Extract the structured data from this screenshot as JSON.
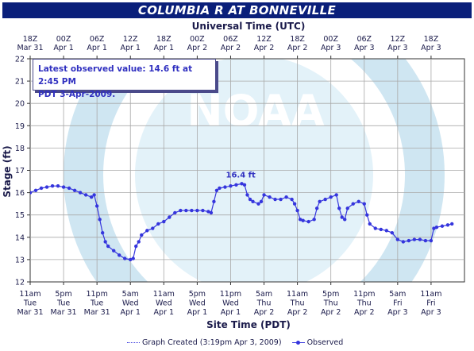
{
  "title": "COLUMBIA R  AT BONNEVILLE",
  "top_axis_title": "Universal Time (UTC)",
  "bottom_axis_title": "Site Time (PDT)",
  "annotation": {
    "line1": "Latest observed value: 14.6 ft at 2:45 PM",
    "line2": "PDT 3-Apr-2009."
  },
  "peak_label": "16.4 ft",
  "watermark": "NOAA",
  "legend": {
    "graph_created": "Graph Created (3:19pm Apr 3, 2009)",
    "observed": "Observed"
  },
  "colors": {
    "title_bg": "#0a1f7a",
    "series": "#3535dd",
    "plot_bg": "#ffffff",
    "grid": "#a8a8a8",
    "axis_text": "#1a1a4a"
  },
  "chart_data": {
    "type": "line",
    "title": "COLUMBIA R  AT BONNEVILLE",
    "xlabel": "Site Time (PDT)",
    "x2label": "Universal Time (UTC)",
    "ylabel": "Stage (ft)",
    "ylim": [
      12,
      22
    ],
    "xlim": [
      "2009-03-31 11:00",
      "2009-04-03 17:00"
    ],
    "yticks": [
      12,
      13,
      14,
      15,
      16,
      17,
      18,
      19,
      20,
      21,
      22
    ],
    "grid": true,
    "xticks_bottom": [
      {
        "t": "2009-03-31 11:00",
        "l1": "11am",
        "l2": "Tue",
        "l3": "Mar 31"
      },
      {
        "t": "2009-03-31 17:00",
        "l1": "5pm",
        "l2": "Tue",
        "l3": "Mar 31"
      },
      {
        "t": "2009-03-31 23:00",
        "l1": "11pm",
        "l2": "Tue",
        "l3": "Mar 31"
      },
      {
        "t": "2009-04-01 05:00",
        "l1": "5am",
        "l2": "Wed",
        "l3": "Apr 1"
      },
      {
        "t": "2009-04-01 11:00",
        "l1": "11am",
        "l2": "Wed",
        "l3": "Apr 1"
      },
      {
        "t": "2009-04-01 17:00",
        "l1": "5pm",
        "l2": "Wed",
        "l3": "Apr 1"
      },
      {
        "t": "2009-04-01 23:00",
        "l1": "11pm",
        "l2": "Wed",
        "l3": "Apr 1"
      },
      {
        "t": "2009-04-02 05:00",
        "l1": "5am",
        "l2": "Thu",
        "l3": "Apr 2"
      },
      {
        "t": "2009-04-02 11:00",
        "l1": "11am",
        "l2": "Thu",
        "l3": "Apr 2"
      },
      {
        "t": "2009-04-02 17:00",
        "l1": "5pm",
        "l2": "Thu",
        "l3": "Apr 2"
      },
      {
        "t": "2009-04-02 23:00",
        "l1": "11pm",
        "l2": "Thu",
        "l3": "Apr 2"
      },
      {
        "t": "2009-04-03 05:00",
        "l1": "5am",
        "l2": "Fri",
        "l3": "Apr 3"
      },
      {
        "t": "2009-04-03 11:00",
        "l1": "11am",
        "l2": "Fri",
        "l3": "Apr 3"
      }
    ],
    "xticks_top": [
      {
        "t": "2009-03-31 11:00",
        "l1": "18Z",
        "l2": "Mar 31"
      },
      {
        "t": "2009-03-31 17:00",
        "l1": "00Z",
        "l2": "Apr 1"
      },
      {
        "t": "2009-03-31 23:00",
        "l1": "06Z",
        "l2": "Apr 1"
      },
      {
        "t": "2009-04-01 05:00",
        "l1": "12Z",
        "l2": "Apr 1"
      },
      {
        "t": "2009-04-01 11:00",
        "l1": "18Z",
        "l2": "Apr 1"
      },
      {
        "t": "2009-04-01 17:00",
        "l1": "00Z",
        "l2": "Apr 2"
      },
      {
        "t": "2009-04-01 23:00",
        "l1": "06Z",
        "l2": "Apr 2"
      },
      {
        "t": "2009-04-02 05:00",
        "l1": "12Z",
        "l2": "Apr 2"
      },
      {
        "t": "2009-04-02 11:00",
        "l1": "18Z",
        "l2": "Apr 2"
      },
      {
        "t": "2009-04-02 17:00",
        "l1": "00Z",
        "l2": "Apr 3"
      },
      {
        "t": "2009-04-02 23:00",
        "l1": "06Z",
        "l2": "Apr 3"
      },
      {
        "t": "2009-04-03 05:00",
        "l1": "12Z",
        "l2": "Apr 3"
      },
      {
        "t": "2009-04-03 11:00",
        "l1": "18Z",
        "l2": "Apr 3"
      }
    ],
    "series": [
      {
        "name": "Observed",
        "points": [
          [
            "2009-03-31 11:00",
            16.0
          ],
          [
            "2009-03-31 12:00",
            16.1
          ],
          [
            "2009-03-31 13:00",
            16.2
          ],
          [
            "2009-03-31 14:00",
            16.25
          ],
          [
            "2009-03-31 15:00",
            16.3
          ],
          [
            "2009-03-31 16:00",
            16.3
          ],
          [
            "2009-03-31 17:00",
            16.25
          ],
          [
            "2009-03-31 18:00",
            16.2
          ],
          [
            "2009-03-31 19:00",
            16.1
          ],
          [
            "2009-03-31 20:00",
            16.0
          ],
          [
            "2009-03-31 21:00",
            15.9
          ],
          [
            "2009-03-31 22:00",
            15.8
          ],
          [
            "2009-03-31 22:30",
            15.9
          ],
          [
            "2009-03-31 23:00",
            15.4
          ],
          [
            "2009-03-31 23:30",
            14.8
          ],
          [
            "2009-04-01 00:00",
            14.2
          ],
          [
            "2009-04-01 00:30",
            13.8
          ],
          [
            "2009-04-01 01:00",
            13.6
          ],
          [
            "2009-04-01 02:00",
            13.4
          ],
          [
            "2009-04-01 03:00",
            13.2
          ],
          [
            "2009-04-01 04:00",
            13.05
          ],
          [
            "2009-04-01 05:00",
            13.0
          ],
          [
            "2009-04-01 05:30",
            13.05
          ],
          [
            "2009-04-01 06:00",
            13.6
          ],
          [
            "2009-04-01 06:30",
            13.8
          ],
          [
            "2009-04-01 07:00",
            14.1
          ],
          [
            "2009-04-01 08:00",
            14.3
          ],
          [
            "2009-04-01 09:00",
            14.4
          ],
          [
            "2009-04-01 10:00",
            14.6
          ],
          [
            "2009-04-01 11:00",
            14.7
          ],
          [
            "2009-04-01 12:00",
            14.9
          ],
          [
            "2009-04-01 13:00",
            15.1
          ],
          [
            "2009-04-01 14:00",
            15.2
          ],
          [
            "2009-04-01 15:00",
            15.2
          ],
          [
            "2009-04-01 16:00",
            15.2
          ],
          [
            "2009-04-01 17:00",
            15.2
          ],
          [
            "2009-04-01 18:00",
            15.2
          ],
          [
            "2009-04-01 19:00",
            15.15
          ],
          [
            "2009-04-01 19:30",
            15.1
          ],
          [
            "2009-04-01 20:00",
            15.6
          ],
          [
            "2009-04-01 20:30",
            16.1
          ],
          [
            "2009-04-01 21:00",
            16.2
          ],
          [
            "2009-04-01 22:00",
            16.25
          ],
          [
            "2009-04-01 23:00",
            16.3
          ],
          [
            "2009-04-02 00:00",
            16.35
          ],
          [
            "2009-04-02 01:00",
            16.4
          ],
          [
            "2009-04-02 01:30",
            16.35
          ],
          [
            "2009-04-02 02:00",
            15.9
          ],
          [
            "2009-04-02 02:30",
            15.7
          ],
          [
            "2009-04-02 03:00",
            15.6
          ],
          [
            "2009-04-02 04:00",
            15.5
          ],
          [
            "2009-04-02 04:30",
            15.6
          ],
          [
            "2009-04-02 05:00",
            15.9
          ],
          [
            "2009-04-02 06:00",
            15.8
          ],
          [
            "2009-04-02 07:00",
            15.7
          ],
          [
            "2009-04-02 08:00",
            15.7
          ],
          [
            "2009-04-02 09:00",
            15.8
          ],
          [
            "2009-04-02 10:00",
            15.7
          ],
          [
            "2009-04-02 10:30",
            15.5
          ],
          [
            "2009-04-02 11:00",
            15.2
          ],
          [
            "2009-04-02 11:30",
            14.8
          ],
          [
            "2009-04-02 12:00",
            14.75
          ],
          [
            "2009-04-02 13:00",
            14.7
          ],
          [
            "2009-04-02 14:00",
            14.8
          ],
          [
            "2009-04-02 14:30",
            15.3
          ],
          [
            "2009-04-02 15:00",
            15.6
          ],
          [
            "2009-04-02 16:00",
            15.7
          ],
          [
            "2009-04-02 17:00",
            15.8
          ],
          [
            "2009-04-02 18:00",
            15.9
          ],
          [
            "2009-04-02 18:30",
            15.3
          ],
          [
            "2009-04-02 19:00",
            14.9
          ],
          [
            "2009-04-02 19:30",
            14.8
          ],
          [
            "2009-04-02 20:00",
            15.3
          ],
          [
            "2009-04-02 21:00",
            15.5
          ],
          [
            "2009-04-02 22:00",
            15.6
          ],
          [
            "2009-04-02 23:00",
            15.5
          ],
          [
            "2009-04-02 23:30",
            15.0
          ],
          [
            "2009-04-03 00:00",
            14.6
          ],
          [
            "2009-04-03 01:00",
            14.4
          ],
          [
            "2009-04-03 02:00",
            14.35
          ],
          [
            "2009-04-03 03:00",
            14.3
          ],
          [
            "2009-04-03 04:00",
            14.2
          ],
          [
            "2009-04-03 05:00",
            13.9
          ],
          [
            "2009-04-03 06:00",
            13.8
          ],
          [
            "2009-04-03 07:00",
            13.85
          ],
          [
            "2009-04-03 08:00",
            13.9
          ],
          [
            "2009-04-03 09:00",
            13.9
          ],
          [
            "2009-04-03 10:00",
            13.85
          ],
          [
            "2009-04-03 11:00",
            13.85
          ],
          [
            "2009-04-03 11:30",
            14.4
          ],
          [
            "2009-04-03 12:00",
            14.45
          ],
          [
            "2009-04-03 13:00",
            14.5
          ],
          [
            "2009-04-03 14:00",
            14.55
          ],
          [
            "2009-04-03 14:45",
            14.6
          ]
        ]
      }
    ]
  }
}
